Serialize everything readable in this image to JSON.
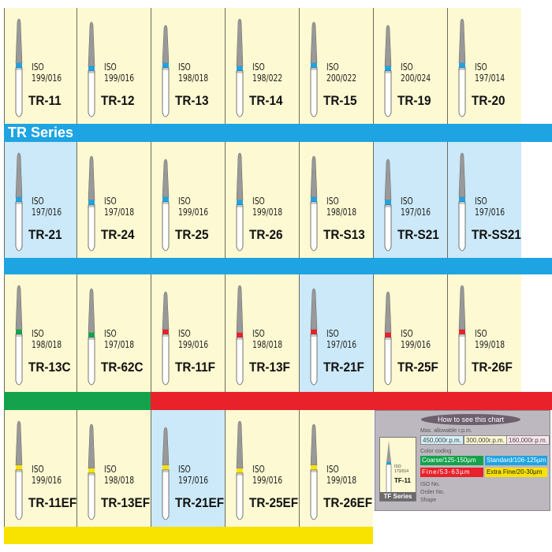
{
  "series_title": "TR Series",
  "colors": {
    "blue": "#1ea4e2",
    "green": "#14a24c",
    "red": "#e8212b",
    "yellow": "#f8e200",
    "cream": "#fdf9d2",
    "light_blue": "#cbe9f8"
  },
  "rows": [
    {
      "band": [
        {
          "color": "blue",
          "from": 0,
          "to": 7
        }
      ],
      "items": [
        {
          "code": "TR-11",
          "iso_label": "ISO",
          "iso": "199/016",
          "coding": "blue",
          "highlight": false
        },
        {
          "code": "TR-12",
          "iso_label": "ISO",
          "iso": "199/016",
          "coding": "blue",
          "highlight": false
        },
        {
          "code": "TR-13",
          "iso_label": "ISO",
          "iso": "198/018",
          "coding": "blue",
          "highlight": false
        },
        {
          "code": "TR-14",
          "iso_label": "ISO",
          "iso": "198/022",
          "coding": "blue",
          "highlight": false
        },
        {
          "code": "TR-15",
          "iso_label": "ISO",
          "iso": "200/022",
          "coding": "blue",
          "highlight": false
        },
        {
          "code": "TR-19",
          "iso_label": "ISO",
          "iso": "200/024",
          "coding": "blue",
          "highlight": false
        },
        {
          "code": "TR-20",
          "iso_label": "ISO",
          "iso": "197/014",
          "coding": "blue",
          "highlight": false
        }
      ]
    },
    {
      "band": [
        {
          "color": "blue",
          "from": 0,
          "to": 7
        }
      ],
      "items": [
        {
          "code": "TR-21",
          "iso_label": "ISO",
          "iso": "197/016",
          "coding": "blue",
          "highlight": true
        },
        {
          "code": "TR-24",
          "iso_label": "ISO",
          "iso": "197/018",
          "coding": "blue",
          "highlight": false
        },
        {
          "code": "TR-25",
          "iso_label": "ISO",
          "iso": "199/016",
          "coding": "blue",
          "highlight": false
        },
        {
          "code": "TR-26",
          "iso_label": "ISO",
          "iso": "199/018",
          "coding": "blue",
          "highlight": false
        },
        {
          "code": "TR-S13",
          "iso_label": "ISO",
          "iso": "198/018",
          "coding": "blue",
          "highlight": false
        },
        {
          "code": "TR-S21",
          "iso_label": "ISO",
          "iso": "197/016",
          "coding": "blue",
          "highlight": true
        },
        {
          "code": "TR-SS21",
          "iso_label": "ISO",
          "iso": "197/016",
          "coding": "blue",
          "highlight": true
        }
      ]
    },
    {
      "band": [
        {
          "color": "green",
          "from": 0,
          "to": 2
        },
        {
          "color": "red",
          "from": 2,
          "to": 7
        }
      ],
      "items": [
        {
          "code": "TR-13C",
          "iso_label": "ISO",
          "iso": "198/018",
          "coding": "green",
          "highlight": false
        },
        {
          "code": "TR-62C",
          "iso_label": "ISO",
          "iso": "197/018",
          "coding": "green",
          "highlight": false
        },
        {
          "code": "TR-11F",
          "iso_label": "ISO",
          "iso": "199/016",
          "coding": "red",
          "highlight": false
        },
        {
          "code": "TR-13F",
          "iso_label": "ISO",
          "iso": "198/018",
          "coding": "red",
          "highlight": false
        },
        {
          "code": "TR-21F",
          "iso_label": "ISO",
          "iso": "197/016",
          "coding": "red",
          "highlight": true
        },
        {
          "code": "TR-25F",
          "iso_label": "ISO",
          "iso": "199/016",
          "coding": "red",
          "highlight": false
        },
        {
          "code": "TR-26F",
          "iso_label": "ISO",
          "iso": "199/018",
          "coding": "red",
          "highlight": false
        }
      ]
    },
    {
      "band": [
        {
          "color": "yellow",
          "from": 0,
          "to": 5
        }
      ],
      "items": [
        {
          "code": "TR-11EF",
          "iso_label": "ISO",
          "iso": "199/016",
          "coding": "yellow",
          "highlight": false
        },
        {
          "code": "TR-13EF",
          "iso_label": "ISO",
          "iso": "198/018",
          "coding": "yellow",
          "highlight": false
        },
        {
          "code": "TR-21EF",
          "iso_label": "ISO",
          "iso": "197/016",
          "coding": "yellow",
          "highlight": true
        },
        {
          "code": "TR-25EF",
          "iso_label": "ISO",
          "iso": "199/016",
          "coding": "yellow",
          "highlight": false
        },
        {
          "code": "TR-26EF",
          "iso_label": "ISO",
          "iso": "199/018",
          "coding": "yellow",
          "highlight": false
        }
      ]
    }
  ],
  "legend": {
    "title": "How to see this chart",
    "rpm_label": "Max. allowable r.p.m.",
    "rpm": [
      "450,000r.p.m.",
      "300,000r.p.m.",
      "160,000r.p.m."
    ],
    "color_label": "Color coding",
    "coding": {
      "coarse": "Coarse/125-150µm",
      "standard": "Standard/106-125µm",
      "fine": "Fine/53-63µm",
      "extra_fine": "Extra Fine/20-30µm"
    },
    "sample_iso_label": "ISO",
    "sample_iso": "173/014",
    "sample_code": "TF-11",
    "sample_series": "TF Series",
    "iso_no": "ISO No.",
    "order_no": "Order No.",
    "shape": "Shape"
  }
}
